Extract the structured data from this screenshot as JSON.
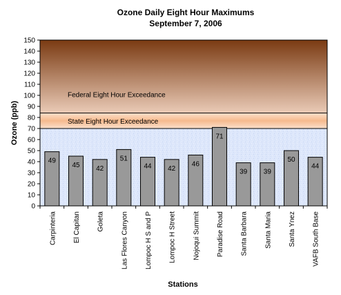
{
  "chart_data": {
    "type": "bar",
    "title": "Ozone Daily Eight Hour Maximums",
    "subtitle": "September 7, 2006",
    "xlabel": "Stations",
    "ylabel": "Ozone (ppb)",
    "ylim": [
      0,
      150
    ],
    "ytick_step": 10,
    "grid": false,
    "categories": [
      "Carpinteria",
      "El Capitan",
      "Goleta",
      "Las Flores Canyon",
      "Lompoc H S and P",
      "Lompoc H Street",
      "Nojoqui Summit",
      "Paradise Road",
      "Santa Barbara",
      "Santa Maria",
      "Santa Ynez",
      "VAFB South Base"
    ],
    "values": [
      49,
      45,
      42,
      51,
      44,
      42,
      46,
      71,
      39,
      39,
      50,
      44
    ],
    "bands": [
      {
        "label": "State Eight Hour Exceedance",
        "from": 70,
        "to": 84
      },
      {
        "label": "Federal Eight Hour Exceedance",
        "from": 84,
        "to": 150,
        "label_at": 101
      }
    ],
    "colors": {
      "bar": "#999999",
      "bar_edge": "#000000",
      "state_band": "#f6ba8e",
      "federal_top": "#7a3a12",
      "federal_bottom": "#eacbb7",
      "background": "#dde7fb"
    }
  }
}
